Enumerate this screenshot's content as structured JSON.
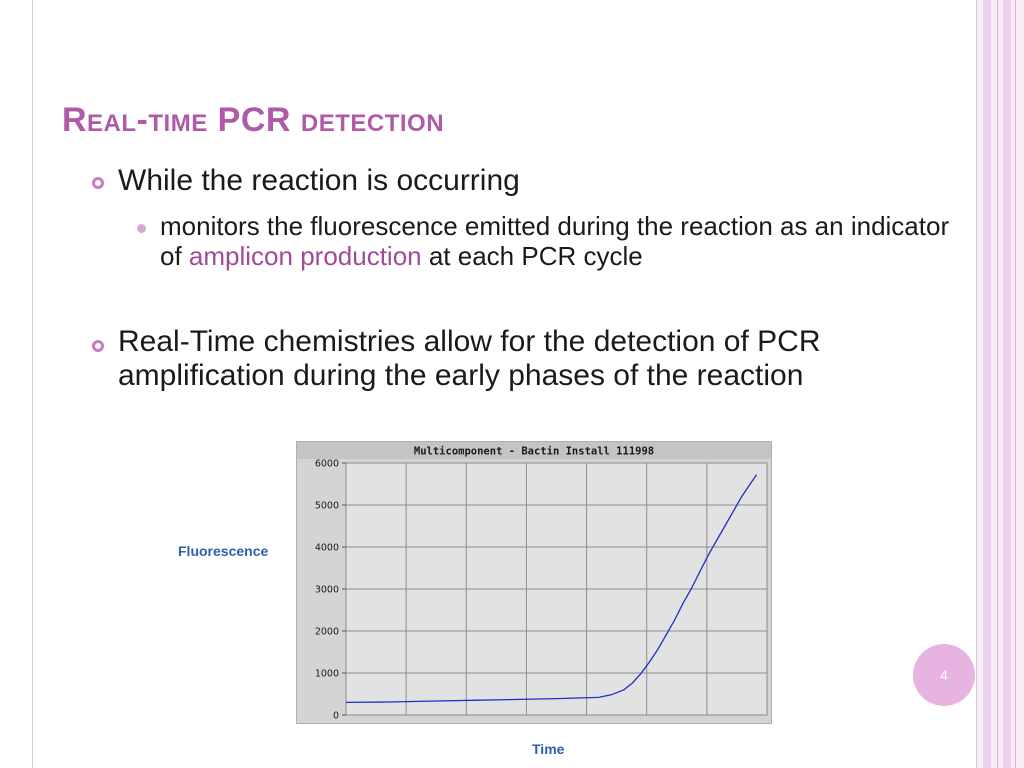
{
  "slide": {
    "title": "Real-time PCR  detection",
    "bullets": [
      "While the reaction is occurring",
      "Real-Time chemistries allow for the detection of PCR amplification during the early phases of the reaction"
    ],
    "sub_bullet": {
      "before": "monitors the fluorescence emitted during the reaction as an indicator of ",
      "highlight": "amplicon production",
      "after": " at each PCR cycle"
    },
    "page_number": "4"
  },
  "colors": {
    "title": "#b05aa8",
    "highlight": "#a04a98",
    "bullet_ring": "#c87cc0",
    "page_badge": "#e7b3e0",
    "series": "#1f2fc8",
    "axis_label": "#2e5fb0"
  },
  "icons": {
    "main_bullet": "ring-bullet-icon",
    "sub_bullet": "dot-bullet-icon"
  },
  "chart_data": {
    "type": "line",
    "title": "Multicomponent - Bactin Install 111998",
    "xlabel": "Time",
    "ylabel": "Fluorescence",
    "yticks": [
      0,
      1000,
      2000,
      3000,
      4000,
      5000,
      6000
    ],
    "ylim": [
      0,
      6000
    ],
    "x_range": [
      0,
      1
    ],
    "grid": true,
    "series": [
      {
        "color": "#1f2fc8",
        "x": [
          0.0,
          0.1,
          0.2,
          0.3,
          0.4,
          0.5,
          0.6,
          0.63,
          0.66,
          0.68,
          0.7,
          0.72,
          0.74,
          0.76,
          0.78,
          0.8,
          0.82,
          0.84,
          0.86,
          0.88,
          0.9,
          0.92,
          0.94,
          0.96,
          0.975
        ],
        "values": [
          300,
          310,
          330,
          350,
          370,
          390,
          420,
          480,
          600,
          760,
          980,
          1250,
          1550,
          1900,
          2250,
          2650,
          3000,
          3400,
          3800,
          4150,
          4500,
          4850,
          5200,
          5500,
          5720
        ]
      }
    ]
  }
}
